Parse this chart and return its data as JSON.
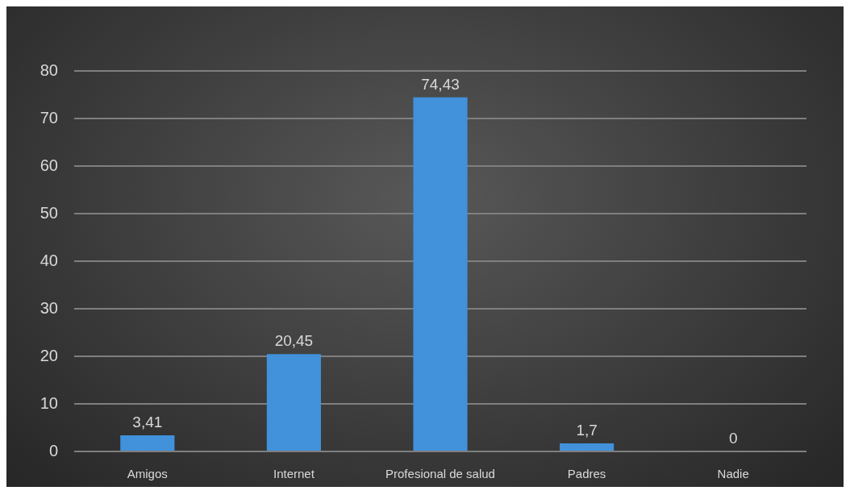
{
  "chart_data": {
    "type": "bar",
    "categories": [
      "Amigos",
      "Internet",
      "Profesional de salud",
      "Padres",
      "Nadie"
    ],
    "values": [
      3.41,
      20.45,
      74.43,
      1.7,
      0
    ],
    "value_labels": [
      "3,41",
      "20,45",
      "74,43",
      "1,7",
      "0"
    ],
    "color": "#4191db",
    "ylim": [
      0,
      80
    ],
    "yticks": [
      0,
      10,
      20,
      30,
      40,
      50,
      60,
      70,
      80
    ],
    "grid": "y",
    "legend": false
  }
}
